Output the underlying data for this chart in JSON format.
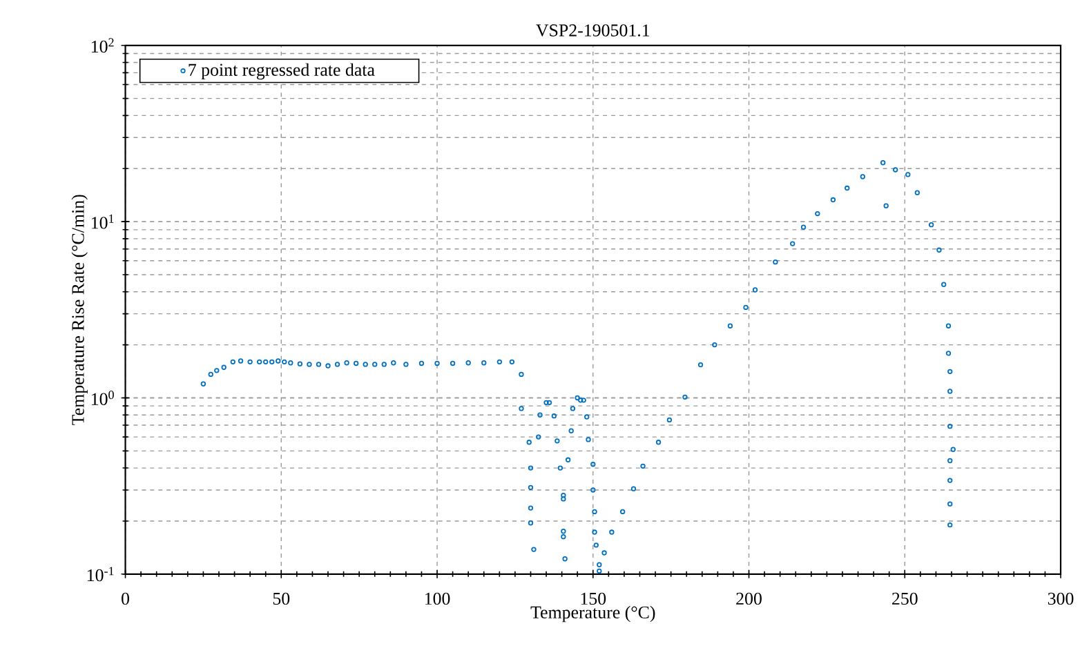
{
  "chart_data": {
    "type": "scatter",
    "title": "VSP2-190501.1",
    "xlabel": "Temperature (°C)",
    "ylabel": "Temperature Rise Rate (°C/min)",
    "xlim": [
      0,
      300
    ],
    "xticks": [
      0,
      50,
      100,
      150,
      200,
      250,
      300
    ],
    "ylim": [
      0.1,
      100
    ],
    "yticks": [
      {
        "value": 0.1,
        "label": "10$^{-1}$"
      },
      {
        "value": 1,
        "label": "10$^{0}$"
      },
      {
        "value": 10,
        "label": "10$^{1}$"
      },
      {
        "value": 100,
        "label": "10$^{2}$"
      }
    ],
    "log": "y",
    "grid": true,
    "legend": "top left",
    "marker": "circle",
    "series": [
      {
        "name": "7 point regressed rate data",
        "color": "#0070c0",
        "x": [
          25,
          27.4,
          29.3,
          31.6,
          34.5,
          37,
          40,
          43,
          45,
          47,
          49,
          51,
          53,
          56,
          59,
          62,
          65,
          68,
          71,
          74,
          77,
          80,
          83,
          86,
          90,
          95,
          100,
          105,
          110,
          115,
          120,
          124,
          127,
          127,
          129.5,
          130,
          130,
          130,
          130,
          131,
          132.5,
          133,
          135,
          136,
          137.5,
          138.5,
          139.5,
          140.5,
          140.5,
          140.5,
          140.5,
          141,
          142,
          143,
          143.5,
          145,
          146,
          147,
          148,
          148.5,
          150,
          150,
          150.5,
          150.5,
          151,
          152,
          152,
          153.6,
          156,
          159.5,
          163,
          166,
          171,
          174.5,
          179.5,
          184.5,
          189,
          194,
          199,
          202,
          208.5,
          214,
          217.5,
          222,
          227,
          231.5,
          236.5,
          243,
          244,
          247,
          251,
          254,
          258.5,
          261,
          262.5,
          264,
          264,
          264.5,
          264.5,
          264.5,
          265.5,
          264.5,
          264.5,
          264.5,
          264.5
        ],
        "values": [
          1.2,
          1.36,
          1.43,
          1.49,
          1.6,
          1.62,
          1.6,
          1.6,
          1.6,
          1.6,
          1.62,
          1.6,
          1.58,
          1.56,
          1.55,
          1.55,
          1.52,
          1.55,
          1.58,
          1.57,
          1.55,
          1.55,
          1.55,
          1.58,
          1.55,
          1.57,
          1.57,
          1.57,
          1.58,
          1.58,
          1.6,
          1.6,
          1.36,
          0.87,
          0.56,
          0.31,
          0.4,
          0.237,
          0.195,
          0.138,
          0.6,
          0.8,
          0.94,
          0.94,
          0.79,
          0.57,
          0.4,
          0.28,
          0.267,
          0.175,
          0.163,
          0.122,
          0.445,
          0.65,
          0.87,
          1.0,
          0.97,
          0.97,
          0.78,
          0.58,
          0.42,
          0.3,
          0.226,
          0.173,
          0.146,
          0.113,
          0.104,
          0.132,
          0.173,
          0.226,
          0.305,
          0.41,
          0.56,
          0.75,
          1.01,
          1.54,
          2.0,
          2.56,
          3.26,
          4.1,
          5.9,
          7.5,
          9.3,
          11.1,
          13.3,
          15.5,
          18,
          21.6,
          12.3,
          19.7,
          18.5,
          14.6,
          9.6,
          6.9,
          4.4,
          2.56,
          1.79,
          1.41,
          1.09,
          0.69,
          0.51,
          0.44,
          0.34,
          0.25,
          0.19
        ]
      }
    ]
  }
}
